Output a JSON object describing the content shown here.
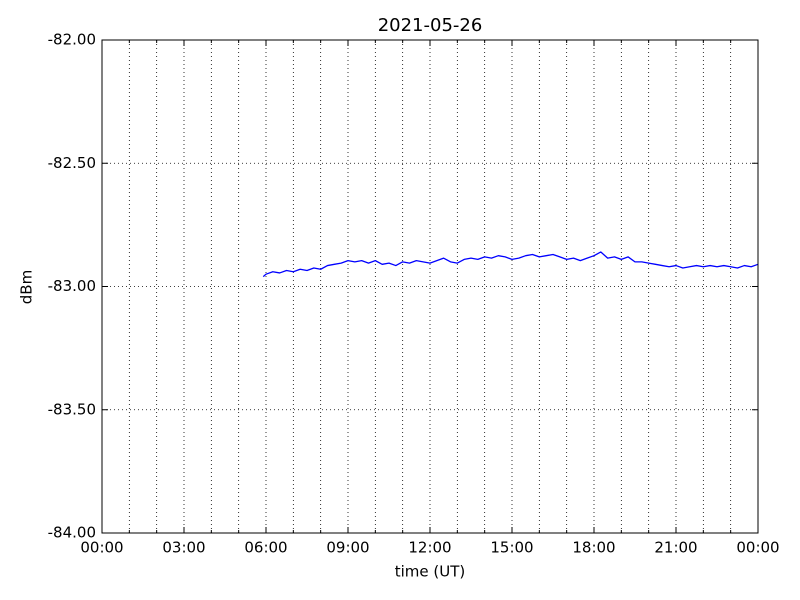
{
  "chart_data": {
    "type": "line",
    "title": "2021-05-26",
    "xlabel": "time (UT)",
    "ylabel": "dBm",
    "color": "#0000ff",
    "grid": true,
    "xlim": [
      0,
      24
    ],
    "xticks": [
      {
        "value": 0,
        "label": "00:00"
      },
      {
        "value": 3,
        "label": "03:00"
      },
      {
        "value": 6,
        "label": "06:00"
      },
      {
        "value": 9,
        "label": "09:00"
      },
      {
        "value": 12,
        "label": "12:00"
      },
      {
        "value": 15,
        "label": "15:00"
      },
      {
        "value": 18,
        "label": "18:00"
      },
      {
        "value": 21,
        "label": "21:00"
      },
      {
        "value": 24,
        "label": "00:00"
      }
    ],
    "xminorticks": [
      1,
      2,
      4,
      5,
      7,
      8,
      10,
      11,
      13,
      14,
      16,
      17,
      19,
      20,
      22,
      23
    ],
    "ylim": [
      -84,
      -82
    ],
    "yticks": [
      {
        "value": -84,
        "label": "-84.00"
      },
      {
        "value": -83.5,
        "label": "-83.50"
      },
      {
        "value": -83,
        "label": "-83.00"
      },
      {
        "value": -82.5,
        "label": "-82.50"
      },
      {
        "value": -82,
        "label": "-82.00"
      }
    ],
    "x": [
      5.9,
      6.0,
      6.25,
      6.5,
      6.75,
      7.0,
      7.25,
      7.5,
      7.75,
      8.0,
      8.25,
      8.5,
      8.75,
      9.0,
      9.25,
      9.5,
      9.75,
      10.0,
      10.25,
      10.5,
      10.75,
      11.0,
      11.25,
      11.5,
      11.75,
      12.0,
      12.25,
      12.5,
      12.75,
      13.0,
      13.25,
      13.5,
      13.75,
      14.0,
      14.25,
      14.5,
      14.75,
      15.0,
      15.25,
      15.5,
      15.75,
      16.0,
      16.25,
      16.5,
      16.75,
      17.0,
      17.25,
      17.5,
      17.75,
      18.0,
      18.25,
      18.5,
      18.75,
      19.0,
      19.25,
      19.5,
      19.75,
      20.0,
      20.25,
      20.5,
      20.75,
      21.0,
      21.25,
      21.5,
      21.75,
      22.0,
      22.25,
      22.5,
      22.75,
      23.0,
      23.25,
      23.5,
      23.75,
      24.0
    ],
    "values": [
      -82.96,
      -82.95,
      -82.94,
      -82.945,
      -82.935,
      -82.94,
      -82.93,
      -82.935,
      -82.925,
      -82.93,
      -82.915,
      -82.91,
      -82.905,
      -82.895,
      -82.9,
      -82.895,
      -82.905,
      -82.895,
      -82.91,
      -82.905,
      -82.915,
      -82.9,
      -82.905,
      -82.895,
      -82.9,
      -82.905,
      -82.895,
      -82.885,
      -82.9,
      -82.905,
      -82.89,
      -82.885,
      -82.89,
      -82.88,
      -82.885,
      -82.875,
      -82.88,
      -82.89,
      -82.885,
      -82.875,
      -82.87,
      -82.88,
      -82.875,
      -82.87,
      -82.88,
      -82.89,
      -82.885,
      -82.895,
      -82.885,
      -82.875,
      -82.86,
      -82.885,
      -82.88,
      -82.89,
      -82.88,
      -82.9,
      -82.9,
      -82.905,
      -82.91,
      -82.915,
      -82.92,
      -82.915,
      -82.925,
      -82.92,
      -82.915,
      -82.92,
      -82.915,
      -82.92,
      -82.915,
      -82.92,
      -82.925,
      -82.915,
      -82.92,
      -82.91
    ]
  }
}
